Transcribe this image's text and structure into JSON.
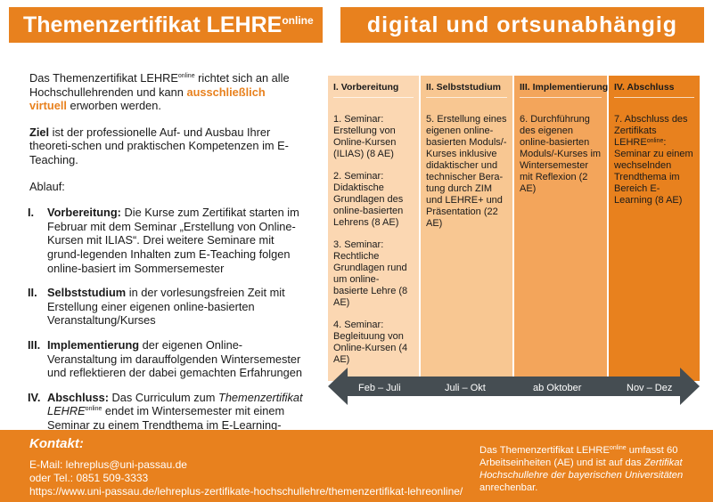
{
  "header": {
    "title_main": "Themenzertifikat LEHRE",
    "title_sup": "online",
    "subtitle": "digital und ortsunabhängig"
  },
  "intro": {
    "p1_a": "Das Themenzertifikat LEHRE",
    "p1_sup": "online",
    "p1_b": " richtet sich an alle Hochschullehrenden und kann ",
    "p1_accent": "ausschließlich virtuell",
    "p1_c": " erworben werden.",
    "p2_bold": "Ziel",
    "p2_rest": " ist der professionelle Auf- und Ausbau Ihrer theoreti-schen und praktischen Kompetenzen im E-Teaching.",
    "p3": "Ablauf:"
  },
  "steps": [
    {
      "num": "I.",
      "bold": "Vorbereitung:",
      "text": " Die Kurse zum Zertifikat starten im Februar mit dem Seminar „Erstellung von Online-Kursen mit ILIAS“. Drei weitere Seminare mit grund-legenden Inhalten zum E-Teaching folgen online-basiert im Sommersemester"
    },
    {
      "num": "II.",
      "bold": "Selbststudium",
      "text": " in der vorlesungsfreien Zeit mit Erstellung einer eigenen online-basierten Veranstaltung/Kurses"
    },
    {
      "num": "III.",
      "bold": "Implementierung",
      "text": " der eigenen Online-Veranstaltung im darauffolgenden Wintersemester und reflektieren der dabei gemachten Erfahrungen"
    },
    {
      "num": "IV.",
      "bold": "Abschluss:",
      "text_a": " Das Curriculum zum ",
      "italic": "Themenzertifikat LEHRE",
      "sup": "online",
      "text_b": " endet im Wintersemester mit einem Seminar zu einem Trendthema im E-Learning-Bereich."
    }
  ],
  "phases": [
    {
      "head": "I. Vorbereitung",
      "items": [
        "1. Seminar: Erstellung von Online-Kursen (ILIAS) (8 AE)",
        "2. Seminar: Didaktische Grundlagen des online-basierten Lehrens (8 AE)",
        "3. Seminar: Rechtliche Grundlagen rund um online-basierte Lehre (8 AE)",
        "4. Seminar: Begleituung von Online-Kursen (4 AE)"
      ]
    },
    {
      "head": "II. Selbststudium",
      "items": [
        "5. Erstellung eines eigenen online-basierten Moduls/-Kurses inklusive didaktischer und technischer Bera-tung durch ZIM und LEHRE+ und Präsentation (22 AE)"
      ]
    },
    {
      "head": "III. Implementierung",
      "items": [
        "6. Durchführung des eigenen online-basierten Moduls/-Kurses im Wintersemester mit Reflexion (2 AE)"
      ]
    },
    {
      "head": "IV. Abschluss",
      "item_a": "7. Abschluss des Zertifikats LEHRE",
      "item_sup": "online",
      "item_b": ": Seminar zu einem wechselnden Trendthema im Bereich E-Learning (8 AE)"
    }
  ],
  "timeline": [
    "Feb – Juli",
    "Juli – Okt",
    "ab Oktober",
    "Nov – Dez"
  ],
  "footer": {
    "contact_title": "Kontakt:",
    "email": "E-Mail: lehreplus@uni-passau.de",
    "phone": "oder Tel.: 0851 509-3333",
    "url": "https://www.uni-passau.de/lehreplus-zertifikate-hochschullehre/themenzertifikat-lehreonline/",
    "note_a": "Das Themenzertifikat LEHRE",
    "note_sup": "online",
    "note_b": " umfasst 60 Arbeitseinheiten (AE) und ist auf das ",
    "note_italic": "Zertifikat Hochschullehre der bayerischen Universitäten",
    "note_c": " anrechenbar."
  },
  "colors": {
    "accent": "#e8811e",
    "phase1": "#fbd7b2",
    "phase2": "#f8c792",
    "phase3": "#f3a55b",
    "phase4": "#e8811e",
    "arrow": "#454d52"
  }
}
